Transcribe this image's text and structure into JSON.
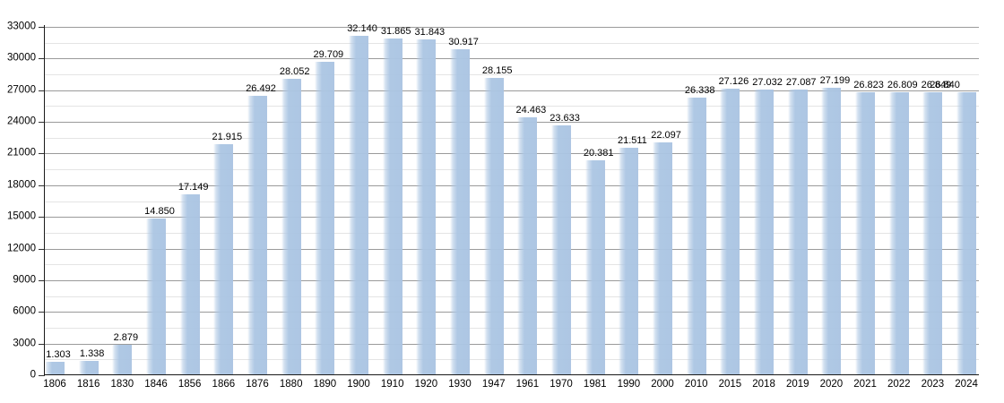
{
  "chart_data": {
    "type": "bar",
    "title": "",
    "xlabel": "",
    "ylabel": "",
    "legend": "none",
    "grid": "horizontal major every 3000, minor every 1500",
    "ylim": [
      0,
      33000
    ],
    "ytick_step": 3000,
    "yminor_step": 1500,
    "ytick_labels": [
      "0",
      "3000",
      "6000",
      "9000",
      "12000",
      "15000",
      "18000",
      "21000",
      "24000",
      "27000",
      "30000",
      "33000"
    ],
    "categories": [
      "1806",
      "1816",
      "1830",
      "1846",
      "1856",
      "1866",
      "1876",
      "1880",
      "1890",
      "1900",
      "1910",
      "1920",
      "1930",
      "1947",
      "1961",
      "1970",
      "1981",
      "1990",
      "2000",
      "2010",
      "2015",
      "2018",
      "2019",
      "2020",
      "2021",
      "2022",
      "2023",
      "2024"
    ],
    "values": [
      1303,
      1338,
      2879,
      14850,
      17149,
      21915,
      26492,
      28052,
      29709,
      32140,
      31865,
      31843,
      30917,
      28155,
      24463,
      23633,
      20381,
      21511,
      22097,
      26338,
      27126,
      27032,
      27087,
      27199,
      26823,
      26809,
      26849,
      26840
    ],
    "value_labels": [
      "1.303",
      "1.338",
      "2.879",
      "14.850",
      "17.149",
      "21.915",
      "26.492",
      "28.052",
      "29.709",
      "32.140",
      "31.865",
      "31.843",
      "30.917",
      "28.155",
      "24.463",
      "23.633",
      "20.381",
      "21.511",
      "22.097",
      "26.338",
      "27.126",
      "27.032",
      "27.087",
      "27.199",
      "26.823",
      "26.809",
      "26.849",
      "26.840"
    ],
    "label_dx": {
      "2024": -28
    },
    "label_note": "value labels for 2023 and 2024 overlap each other in the original image",
    "bar_color": "#aec8e4",
    "colors": {
      "bar_fill": "#aec8e4",
      "grid_major": "#9a9a9a",
      "grid_minor": "#e4e4e4",
      "axis": "#1a1a1a",
      "text": "#000000",
      "background": "#ffffff"
    }
  }
}
